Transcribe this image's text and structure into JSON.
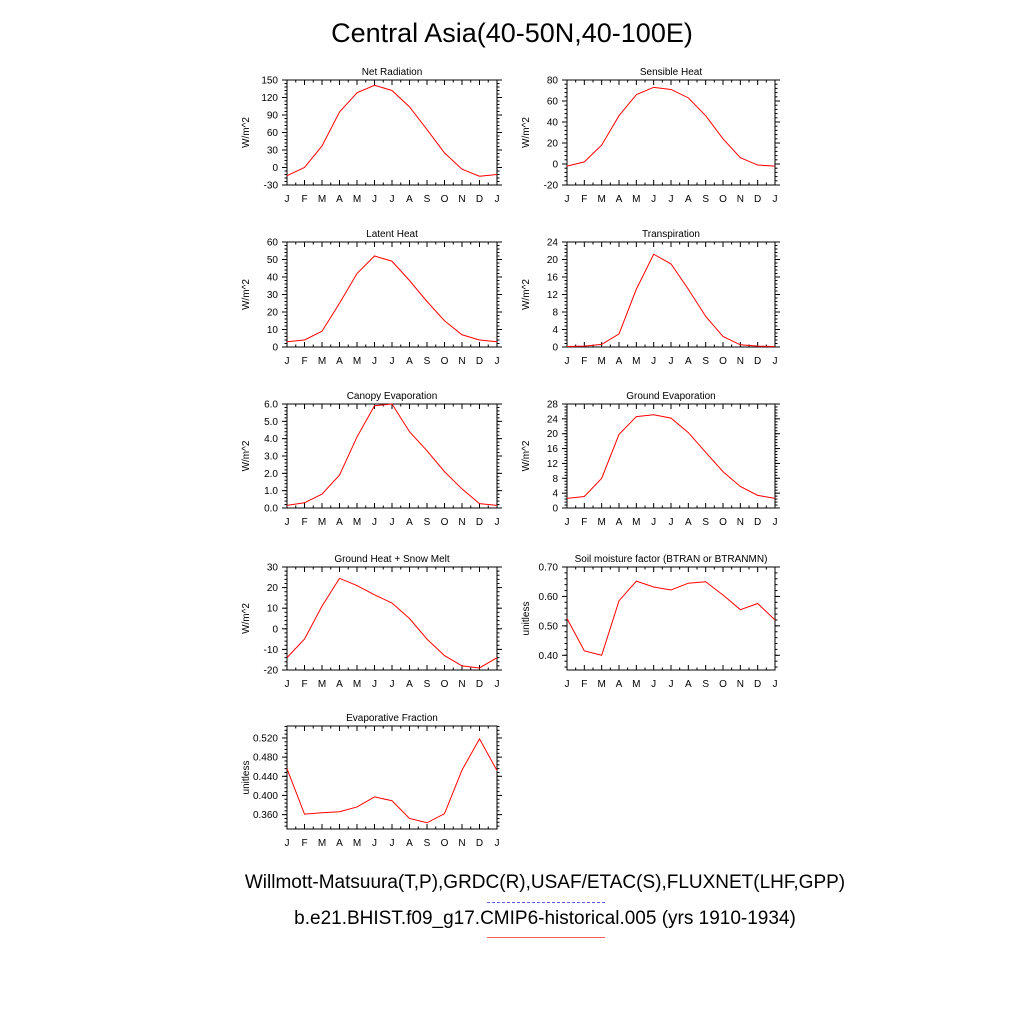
{
  "page": {
    "title": "Central Asia(40-50N,40-100E)",
    "legend": {
      "observations": "Willmott-Matsuura(T,P),GRDC(R),USAF/ETAC(S),FLUXNET(LHF,GPP)",
      "model": "b.e21.BHIST.f09_g17.CMIP6-historical.005 (yrs 1910-1934)"
    },
    "colors": {
      "model_line": "#ff0000",
      "obs_line": "#5a5aff"
    }
  },
  "chart_data": [
    {
      "type": "line",
      "title": "Net Radiation",
      "xlabel": "",
      "ylabel": "W/m^2",
      "categories": [
        "J",
        "F",
        "M",
        "A",
        "M",
        "J",
        "J",
        "A",
        "S",
        "O",
        "N",
        "D",
        "J"
      ],
      "yticks": [
        "-30",
        "0",
        "30",
        "60",
        "90",
        "120",
        "150"
      ],
      "ylim": [
        -30,
        150
      ],
      "series": [
        {
          "values": [
            -14,
            0,
            37,
            95,
            128,
            141,
            132,
            104,
            65,
            25,
            -3,
            -15,
            -12
          ]
        }
      ]
    },
    {
      "type": "line",
      "title": "Sensible Heat",
      "xlabel": "",
      "ylabel": "W/m^2",
      "categories": [
        "J",
        "F",
        "M",
        "A",
        "M",
        "J",
        "J",
        "A",
        "S",
        "O",
        "N",
        "D",
        "J"
      ],
      "yticks": [
        "-20",
        "0",
        "20",
        "40",
        "60",
        "80"
      ],
      "ylim": [
        -20,
        80
      ],
      "series": [
        {
          "values": [
            -2,
            2,
            18,
            46,
            66,
            73,
            71,
            63,
            46,
            24,
            6,
            -1,
            -2
          ]
        }
      ]
    },
    {
      "type": "line",
      "title": "Latent Heat",
      "xlabel": "",
      "ylabel": "W/m^2",
      "categories": [
        "J",
        "F",
        "M",
        "A",
        "M",
        "J",
        "J",
        "A",
        "S",
        "O",
        "N",
        "D",
        "J"
      ],
      "yticks": [
        "0",
        "10",
        "20",
        "30",
        "40",
        "50",
        "60"
      ],
      "ylim": [
        0,
        60
      ],
      "series": [
        {
          "values": [
            3,
            4,
            9,
            25,
            42,
            52,
            49,
            38,
            26,
            15,
            7,
            4,
            3
          ]
        }
      ]
    },
    {
      "type": "line",
      "title": "Transpiration",
      "xlabel": "",
      "ylabel": "W/m^2",
      "categories": [
        "J",
        "F",
        "M",
        "A",
        "M",
        "J",
        "J",
        "A",
        "S",
        "O",
        "N",
        "D",
        "J"
      ],
      "yticks": [
        "0",
        "4",
        "8",
        "12",
        "16",
        "20",
        "24"
      ],
      "ylim": [
        0,
        24
      ],
      "series": [
        {
          "values": [
            0.1,
            0.2,
            0.6,
            3,
            13.2,
            21.2,
            19,
            13.2,
            7,
            2.4,
            0.5,
            0.2,
            0.1
          ]
        }
      ]
    },
    {
      "type": "line",
      "title": "Canopy Evaporation",
      "xlabel": "",
      "ylabel": "W/m^2",
      "categories": [
        "J",
        "F",
        "M",
        "A",
        "M",
        "J",
        "J",
        "A",
        "S",
        "O",
        "N",
        "D",
        "J"
      ],
      "yticks": [
        "0.0",
        "1.0",
        "2.0",
        "3.0",
        "4.0",
        "5.0",
        "6.0"
      ],
      "ylim": [
        0,
        6
      ],
      "series": [
        {
          "values": [
            0.15,
            0.3,
            0.8,
            1.9,
            4.1,
            5.9,
            6.0,
            4.4,
            3.3,
            2.1,
            1.1,
            0.25,
            0.15
          ]
        }
      ]
    },
    {
      "type": "line",
      "title": "Ground Evaporation",
      "xlabel": "",
      "ylabel": "W/m^2",
      "categories": [
        "J",
        "F",
        "M",
        "A",
        "M",
        "J",
        "J",
        "A",
        "S",
        "O",
        "N",
        "D",
        "J"
      ],
      "yticks": [
        "0",
        "4",
        "8",
        "12",
        "16",
        "20",
        "24",
        "28"
      ],
      "ylim": [
        0,
        28
      ],
      "series": [
        {
          "values": [
            2.6,
            3.1,
            8,
            19.8,
            24.6,
            25.1,
            24.2,
            20.3,
            15,
            9.8,
            5.8,
            3.4,
            2.6
          ]
        }
      ]
    },
    {
      "type": "line",
      "title": "Ground Heat + Snow Melt",
      "xlabel": "",
      "ylabel": "W/m^2",
      "categories": [
        "J",
        "F",
        "M",
        "A",
        "M",
        "J",
        "J",
        "A",
        "S",
        "O",
        "N",
        "D",
        "J"
      ],
      "yticks": [
        "-20",
        "-10",
        "0",
        "10",
        "20",
        "30"
      ],
      "ylim": [
        -20,
        30
      ],
      "series": [
        {
          "values": [
            -14,
            -5,
            11,
            24.5,
            21,
            16.5,
            12.5,
            5,
            -5,
            -13,
            -18,
            -19,
            -14
          ]
        }
      ]
    },
    {
      "type": "line",
      "title": "Soil moisture factor (BTRAN or BTRANMN)",
      "xlabel": "",
      "ylabel": "unitless",
      "categories": [
        "J",
        "F",
        "M",
        "A",
        "M",
        "J",
        "J",
        "A",
        "S",
        "O",
        "N",
        "D",
        "J"
      ],
      "yticks": [
        "0.40",
        "0.50",
        "0.60",
        "0.70"
      ],
      "ylim": [
        0.35,
        0.7
      ],
      "series": [
        {
          "values": [
            0.525,
            0.415,
            0.4,
            0.585,
            0.652,
            0.632,
            0.622,
            0.645,
            0.65,
            0.605,
            0.555,
            0.576,
            0.52
          ]
        }
      ]
    },
    {
      "type": "line",
      "title": "Evaporative Fraction",
      "xlabel": "",
      "ylabel": "unitless",
      "categories": [
        "J",
        "F",
        "M",
        "A",
        "M",
        "J",
        "J",
        "A",
        "S",
        "O",
        "N",
        "D",
        "J"
      ],
      "yticks": [
        "0.360",
        "0.400",
        "0.440",
        "0.480",
        "0.520"
      ],
      "ylim": [
        0.33,
        0.545
      ],
      "series": [
        {
          "values": [
            0.456,
            0.361,
            0.364,
            0.366,
            0.376,
            0.397,
            0.389,
            0.352,
            0.343,
            0.362,
            0.453,
            0.518,
            0.452
          ]
        }
      ]
    }
  ]
}
